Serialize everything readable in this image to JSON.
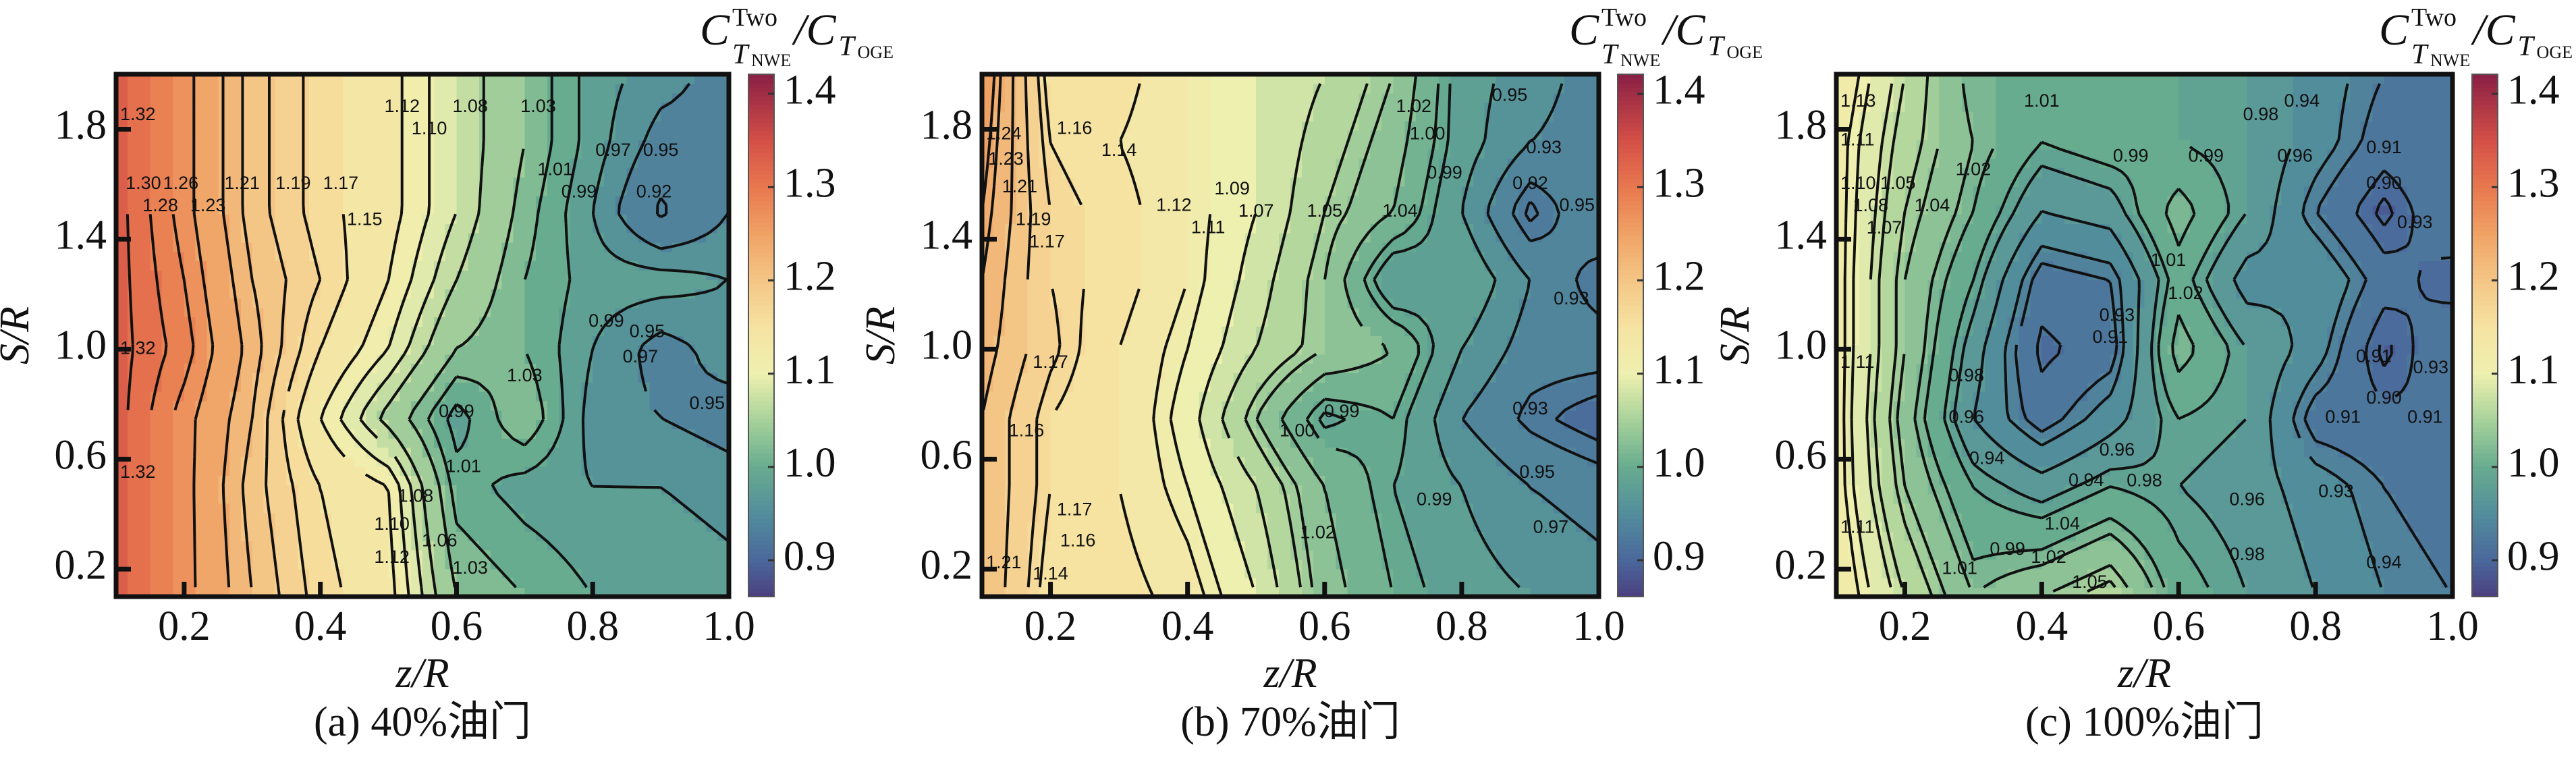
{
  "figure": {
    "colorbar_label": {
      "c1": "C",
      "sup": "Two",
      "t1": "T",
      "t1_sub": "NWE",
      "slash_c2": "/C",
      "t2": "T",
      "t2_sub": "OGE"
    },
    "colorbar_range": [
      0.861,
      1.421
    ],
    "colorbar_ticks": [
      "0.9",
      "1.0",
      "1.1",
      "1.2",
      "1.3",
      "1.4"
    ],
    "colormap": [
      [
        0.86,
        "#4b3e7e"
      ],
      [
        0.9,
        "#4a679c"
      ],
      [
        0.95,
        "#528d9c"
      ],
      [
        1.0,
        "#67ac8f"
      ],
      [
        1.05,
        "#a6d19a"
      ],
      [
        1.1,
        "#eef0b0"
      ],
      [
        1.15,
        "#f6e3a2"
      ],
      [
        1.2,
        "#f4c686"
      ],
      [
        1.25,
        "#f0a365"
      ],
      [
        1.3,
        "#e8784f"
      ],
      [
        1.35,
        "#d45047"
      ],
      [
        1.42,
        "#8b2045"
      ]
    ]
  },
  "chart_data": [
    {
      "type": "heatmap",
      "subtype": "filled-contour",
      "caption": "(a) 40%油门",
      "xlabel": "z/R",
      "ylabel": "S/R",
      "xlim": [
        0.1,
        1.0
      ],
      "ylim": [
        0.1,
        2.0
      ],
      "xticks": [
        "0.2",
        "0.4",
        "0.6",
        "0.8",
        "1.0"
      ],
      "yticks": [
        "0.2",
        "0.6",
        "1.0",
        "1.4",
        "1.8"
      ],
      "x": [
        0.1,
        0.2,
        0.3,
        0.4,
        0.5,
        0.6,
        0.7,
        0.8,
        0.9,
        1.0
      ],
      "y": [
        0.1,
        0.5,
        0.75,
        1.0,
        1.25,
        1.5,
        1.75,
        2.0
      ],
      "z": [
        [
          1.33,
          1.27,
          1.21,
          1.16,
          1.13,
          1.03,
          1.01,
          0.99,
          0.99,
          0.98
        ],
        [
          1.33,
          1.27,
          1.2,
          1.15,
          1.12,
          1.0,
          0.98,
          0.97,
          0.97,
          0.96
        ],
        [
          1.33,
          1.27,
          1.21,
          1.12,
          1.05,
          0.98,
          1.03,
          0.96,
          0.95,
          0.94
        ],
        [
          1.33,
          1.29,
          1.22,
          1.15,
          1.1,
          1.03,
          1.01,
          0.97,
          0.94,
          0.96
        ],
        [
          1.33,
          1.28,
          1.21,
          1.17,
          1.12,
          1.06,
          1.01,
          0.98,
          0.98,
          0.97
        ],
        [
          1.33,
          1.27,
          1.2,
          1.16,
          1.13,
          1.08,
          1.02,
          0.97,
          0.915,
          0.95
        ],
        [
          1.33,
          1.27,
          1.2,
          1.16,
          1.13,
          1.08,
          1.03,
          0.98,
          0.94,
          0.94
        ],
        [
          1.33,
          1.27,
          1.2,
          1.16,
          1.13,
          1.08,
          1.03,
          0.98,
          0.96,
          0.94
        ]
      ],
      "levels": [
        0.92,
        0.95,
        0.97,
        0.99,
        1.01,
        1.03,
        1.06,
        1.08,
        1.1,
        1.12,
        1.15,
        1.17,
        1.19,
        1.21,
        1.23,
        1.26,
        1.28,
        1.3,
        1.32
      ],
      "contour_labels": [
        {
          "z": 0.115,
          "s": 1.85,
          "t": "1.32"
        },
        {
          "z": 0.14,
          "s": 1.6,
          "t": "1.30"
        },
        {
          "z": 0.165,
          "s": 1.6,
          "t": "1.28"
        },
        {
          "z": 0.195,
          "s": 1.6,
          "t": "1.26"
        },
        {
          "z": 0.235,
          "s": 1.6,
          "t": "1.23"
        },
        {
          "z": 0.285,
          "s": 1.6,
          "t": "1.21"
        },
        {
          "z": 0.36,
          "s": 1.6,
          "t": "1.19"
        },
        {
          "z": 0.43,
          "s": 1.6,
          "t": "1.17"
        },
        {
          "z": 0.465,
          "s": 1.55,
          "t": "1.15"
        },
        {
          "z": 0.52,
          "s": 1.88,
          "t": "1.12"
        },
        {
          "z": 0.56,
          "s": 1.88,
          "t": "1.10"
        },
        {
          "z": 0.62,
          "s": 1.88,
          "t": "1.08"
        },
        {
          "z": 0.72,
          "s": 1.88,
          "t": "1.03"
        },
        {
          "z": 0.745,
          "s": 1.65,
          "t": "1.01"
        },
        {
          "z": 0.78,
          "s": 1.65,
          "t": "0.99"
        },
        {
          "z": 0.83,
          "s": 1.72,
          "t": "0.97"
        },
        {
          "z": 0.9,
          "s": 1.72,
          "t": "0.95"
        },
        {
          "z": 0.89,
          "s": 1.57,
          "t": "0.92"
        },
        {
          "z": 0.82,
          "s": 1.1,
          "t": "0.99"
        },
        {
          "z": 0.87,
          "s": 1.05,
          "t": "0.97"
        },
        {
          "z": 0.88,
          "s": 0.98,
          "t": "0.95"
        },
        {
          "z": 0.7,
          "s": 0.9,
          "t": "1.03"
        },
        {
          "z": 0.6,
          "s": 0.77,
          "t": "0.99"
        },
        {
          "z": 0.61,
          "s": 0.57,
          "t": "1.01"
        },
        {
          "z": 0.97,
          "s": 0.8,
          "t": "0.95"
        },
        {
          "z": 0.505,
          "s": 0.36,
          "t": "1.10"
        },
        {
          "z": 0.505,
          "s": 0.24,
          "t": "1.12"
        },
        {
          "z": 0.54,
          "s": 0.3,
          "t": "1.08"
        },
        {
          "z": 0.575,
          "s": 0.3,
          "t": "1.06"
        },
        {
          "z": 0.62,
          "s": 0.12,
          "t": "1.03"
        },
        {
          "z": 0.115,
          "s": 0.55,
          "t": "1.32"
        },
        {
          "z": 0.115,
          "s": 1.0,
          "t": "1.32"
        }
      ]
    },
    {
      "type": "heatmap",
      "subtype": "filled-contour",
      "caption": "(b) 70%油门",
      "xlabel": "z/R",
      "ylabel": "S/R",
      "xlim": [
        0.1,
        1.0
      ],
      "ylim": [
        0.1,
        2.0
      ],
      "xticks": [
        "0.2",
        "0.4",
        "0.6",
        "0.8",
        "1.0"
      ],
      "yticks": [
        "0.2",
        "0.6",
        "1.0",
        "1.4",
        "1.8"
      ],
      "x": [
        0.1,
        0.2,
        0.3,
        0.4,
        0.5,
        0.6,
        0.7,
        0.8,
        0.9,
        1.0
      ],
      "y": [
        0.1,
        0.5,
        0.75,
        1.0,
        1.25,
        1.5,
        1.75,
        2.0
      ],
      "z": [
        [
          1.21,
          1.15,
          1.15,
          1.13,
          1.09,
          1.03,
          1.0,
          0.98,
          0.97,
          0.96
        ],
        [
          1.21,
          1.16,
          1.14,
          1.11,
          1.07,
          1.02,
          0.99,
          0.97,
          0.95,
          0.94
        ],
        [
          1.21,
          1.16,
          1.14,
          1.1,
          1.04,
          0.985,
          1.0,
          0.95,
          0.925,
          0.91
        ],
        [
          1.22,
          1.175,
          1.14,
          1.11,
          1.07,
          1.04,
          1.02,
          0.97,
          0.94,
          0.94
        ],
        [
          1.23,
          1.17,
          1.15,
          1.12,
          1.08,
          1.04,
          0.97,
          0.99,
          0.95,
          0.92
        ],
        [
          1.24,
          1.17,
          1.15,
          1.12,
          1.09,
          1.05,
          1.02,
          0.97,
          0.915,
          0.95
        ],
        [
          1.25,
          1.16,
          1.14,
          1.12,
          1.09,
          1.06,
          1.03,
          0.98,
          0.95,
          0.94
        ],
        [
          1.26,
          1.15,
          1.15,
          1.12,
          1.09,
          1.07,
          1.04,
          0.98,
          0.96,
          0.94
        ]
      ],
      "levels": [
        0.92,
        0.93,
        0.95,
        0.97,
        0.99,
        1.0,
        1.02,
        1.04,
        1.05,
        1.07,
        1.09,
        1.11,
        1.12,
        1.14,
        1.16,
        1.17,
        1.19,
        1.21,
        1.23,
        1.24
      ],
      "contour_labels": [
        {
          "z": 0.115,
          "s": 1.78,
          "t": "1.24"
        },
        {
          "z": 0.135,
          "s": 1.77,
          "t": "1.23"
        },
        {
          "z": 0.155,
          "s": 1.75,
          "t": "1.21"
        },
        {
          "z": 0.175,
          "s": 1.55,
          "t": "1.19"
        },
        {
          "z": 0.195,
          "s": 1.55,
          "t": "1.17"
        },
        {
          "z": 0.235,
          "s": 1.8,
          "t": "1.16"
        },
        {
          "z": 0.3,
          "s": 1.72,
          "t": "1.14"
        },
        {
          "z": 0.38,
          "s": 1.52,
          "t": "1.12"
        },
        {
          "z": 0.43,
          "s": 1.52,
          "t": "1.11"
        },
        {
          "z": 0.465,
          "s": 1.5,
          "t": "1.09"
        },
        {
          "z": 0.5,
          "s": 1.5,
          "t": "1.07"
        },
        {
          "z": 0.6,
          "s": 1.5,
          "t": "1.05"
        },
        {
          "z": 0.71,
          "s": 1.5,
          "t": "1.04"
        },
        {
          "z": 0.73,
          "s": 1.88,
          "t": "1.02"
        },
        {
          "z": 0.75,
          "s": 1.78,
          "t": "1.00"
        },
        {
          "z": 0.775,
          "s": 1.8,
          "t": "0.99"
        },
        {
          "z": 0.87,
          "s": 1.92,
          "t": "0.95"
        },
        {
          "z": 0.92,
          "s": 1.73,
          "t": "0.93"
        },
        {
          "z": 0.9,
          "s": 1.6,
          "t": "0.92"
        },
        {
          "z": 0.975,
          "s": 1.52,
          "t": "0.95"
        },
        {
          "z": 0.96,
          "s": 1.18,
          "t": "0.93"
        },
        {
          "z": 0.9,
          "s": 0.78,
          "t": "0.93"
        },
        {
          "z": 0.91,
          "s": 0.55,
          "t": "0.95"
        },
        {
          "z": 0.93,
          "s": 0.35,
          "t": "0.97"
        },
        {
          "z": 0.76,
          "s": 0.45,
          "t": "0.99"
        },
        {
          "z": 0.59,
          "s": 0.33,
          "t": "1.02"
        },
        {
          "z": 0.56,
          "s": 0.7,
          "t": "1.00"
        },
        {
          "z": 0.625,
          "s": 0.77,
          "t": "0.99"
        },
        {
          "z": 0.2,
          "s": 0.95,
          "t": "1.17"
        },
        {
          "z": 0.165,
          "s": 0.7,
          "t": "1.16"
        },
        {
          "z": 0.24,
          "s": 0.3,
          "t": "1.16"
        },
        {
          "z": 0.13,
          "s": 0.22,
          "t": "1.21"
        },
        {
          "z": 0.2,
          "s": 0.18,
          "t": "1.14"
        },
        {
          "z": 0.235,
          "s": 0.17,
          "t": "1.17"
        }
      ]
    },
    {
      "type": "heatmap",
      "subtype": "filled-contour",
      "caption": "(c) 100%油门",
      "xlabel": "z/R",
      "ylabel": "S/R",
      "xlim": [
        0.1,
        1.0
      ],
      "ylim": [
        0.1,
        2.0
      ],
      "xticks": [
        "0.2",
        "0.4",
        "0.6",
        "0.8",
        "1.0"
      ],
      "yticks": [
        "0.2",
        "0.6",
        "1.0",
        "1.4",
        "1.8"
      ],
      "x": [
        0.1,
        0.2,
        0.3,
        0.4,
        0.5,
        0.6,
        0.7,
        0.8,
        0.9,
        1.0
      ],
      "y": [
        0.1,
        0.5,
        0.75,
        1.0,
        1.25,
        1.5,
        1.75,
        2.0
      ],
      "z": [
        [
          1.13,
          1.07,
          1.02,
          1.04,
          1.06,
          1.0,
          0.98,
          0.96,
          0.94,
          0.93
        ],
        [
          1.12,
          1.04,
          0.99,
          0.97,
          0.99,
          0.98,
          0.97,
          0.95,
          0.93,
          0.92
        ],
        [
          1.12,
          1.03,
          0.96,
          0.92,
          0.95,
          0.99,
          0.98,
          0.92,
          0.915,
          0.91
        ],
        [
          1.12,
          1.04,
          0.97,
          0.905,
          0.92,
          1.02,
          0.98,
          0.95,
          0.895,
          0.93
        ],
        [
          1.12,
          1.04,
          0.99,
          0.92,
          0.93,
          1.0,
          0.95,
          0.96,
          0.92,
          0.9
        ],
        [
          1.12,
          1.05,
          1.01,
          0.96,
          0.97,
          1.02,
          0.98,
          0.93,
          0.895,
          0.93
        ],
        [
          1.12,
          1.06,
          1.02,
          0.99,
          1.0,
          0.99,
          0.98,
          0.95,
          0.92,
          0.93
        ],
        [
          1.13,
          1.07,
          1.01,
          1.01,
          1.01,
          0.99,
          0.98,
          0.95,
          0.93,
          0.93
        ]
      ],
      "levels": [
        0.9,
        0.91,
        0.93,
        0.94,
        0.96,
        0.98,
        0.99,
        1.01,
        1.02,
        1.04,
        1.05,
        1.07,
        1.08,
        1.1,
        1.11,
        1.13
      ],
      "contour_labels": [
        {
          "z": 0.11,
          "s": 1.9,
          "t": "1.13"
        },
        {
          "z": 0.12,
          "s": 1.84,
          "t": "1.11"
        },
        {
          "z": 0.13,
          "s": 1.6,
          "t": "1.10"
        },
        {
          "z": 0.15,
          "s": 1.6,
          "t": "1.08"
        },
        {
          "z": 0.17,
          "s": 1.6,
          "t": "1.07"
        },
        {
          "z": 0.19,
          "s": 1.6,
          "t": "1.05"
        },
        {
          "z": 0.24,
          "s": 1.6,
          "t": "1.04"
        },
        {
          "z": 0.3,
          "s": 1.65,
          "t": "1.02"
        },
        {
          "z": 0.4,
          "s": 1.9,
          "t": "1.01"
        },
        {
          "z": 0.53,
          "s": 1.7,
          "t": "0.99"
        },
        {
          "z": 0.64,
          "s": 1.7,
          "t": "0.99"
        },
        {
          "z": 0.72,
          "s": 1.85,
          "t": "0.98"
        },
        {
          "z": 0.78,
          "s": 1.9,
          "t": "0.94"
        },
        {
          "z": 0.77,
          "s": 1.7,
          "t": "0.96"
        },
        {
          "z": 0.9,
          "s": 1.73,
          "t": "0.91"
        },
        {
          "z": 0.9,
          "s": 1.6,
          "t": "0.90"
        },
        {
          "z": 0.945,
          "s": 1.62,
          "t": "0.93"
        },
        {
          "z": 0.51,
          "s": 1.12,
          "t": "0.93"
        },
        {
          "z": 0.5,
          "s": 1.04,
          "t": "0.91"
        },
        {
          "z": 0.585,
          "s": 1.32,
          "t": "1.01"
        },
        {
          "z": 0.61,
          "s": 1.2,
          "t": "1.02"
        },
        {
          "z": 0.29,
          "s": 0.9,
          "t": "0.98"
        },
        {
          "z": 0.29,
          "s": 0.75,
          "t": "0.96"
        },
        {
          "z": 0.32,
          "s": 0.6,
          "t": "0.94"
        },
        {
          "z": 0.465,
          "s": 0.52,
          "t": "0.94"
        },
        {
          "z": 0.51,
          "s": 0.55,
          "t": "0.96"
        },
        {
          "z": 0.55,
          "s": 0.6,
          "t": "0.98"
        },
        {
          "z": 0.885,
          "s": 0.97,
          "t": "0.91"
        },
        {
          "z": 0.9,
          "s": 0.9,
          "t": "0.90"
        },
        {
          "z": 0.97,
          "s": 0.93,
          "t": "0.93"
        },
        {
          "z": 0.84,
          "s": 0.75,
          "t": "0.91"
        },
        {
          "z": 0.96,
          "s": 0.75,
          "t": "0.91"
        },
        {
          "z": 0.83,
          "s": 0.48,
          "t": "0.93"
        },
        {
          "z": 0.7,
          "s": 0.45,
          "t": "0.96"
        },
        {
          "z": 0.7,
          "s": 0.25,
          "t": "0.98"
        },
        {
          "z": 0.9,
          "s": 0.22,
          "t": "0.94"
        },
        {
          "z": 0.35,
          "s": 0.27,
          "t": "0.99"
        },
        {
          "z": 0.28,
          "s": 0.2,
          "t": "1.01"
        },
        {
          "z": 0.41,
          "s": 0.24,
          "t": "1.02"
        },
        {
          "z": 0.43,
          "s": 0.2,
          "t": "1.04"
        },
        {
          "z": 0.47,
          "s": 0.15,
          "t": "1.05"
        },
        {
          "z": 0.12,
          "s": 0.95,
          "t": "1.11"
        },
        {
          "z": 0.12,
          "s": 0.35,
          "t": "1.11"
        }
      ]
    }
  ]
}
